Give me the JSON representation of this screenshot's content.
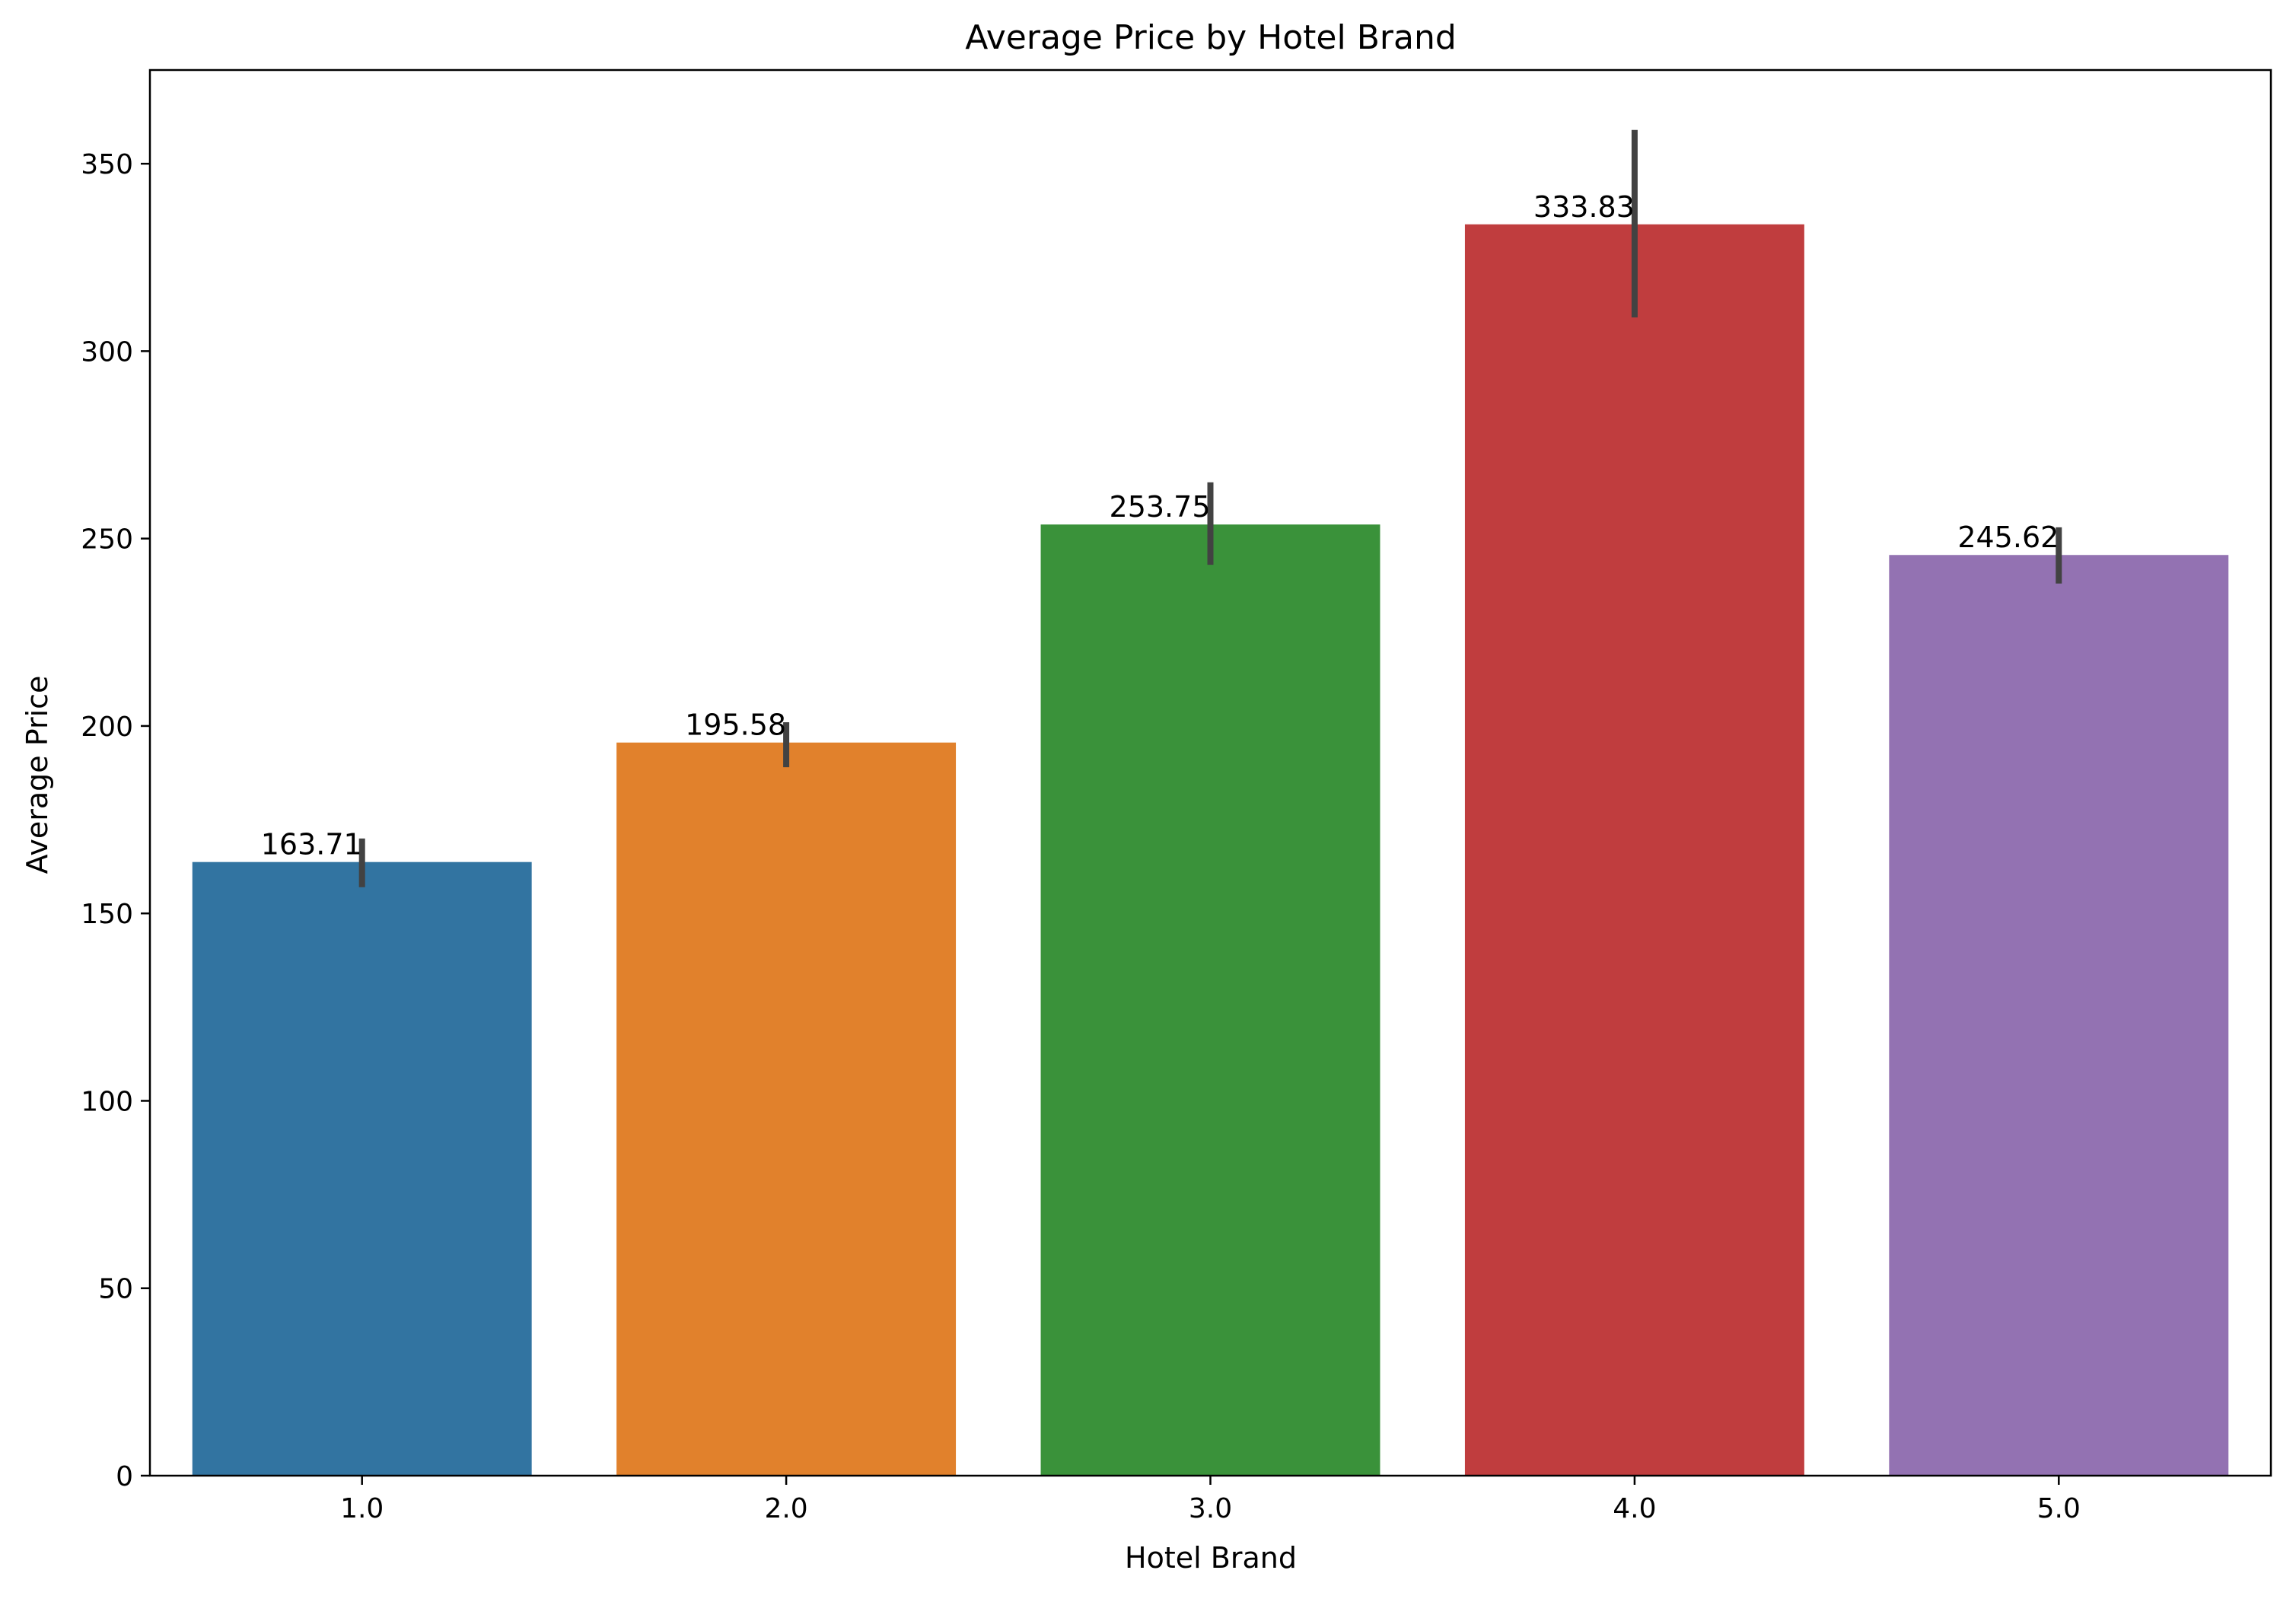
{
  "chart_data": {
    "type": "bar",
    "title": "Average Price by Hotel Brand",
    "xlabel": "Hotel Brand",
    "ylabel": "Average Price",
    "categories": [
      "1.0",
      "2.0",
      "3.0",
      "4.0",
      "5.0"
    ],
    "values": [
      163.71,
      195.58,
      253.75,
      333.83,
      245.62
    ],
    "value_labels": [
      "163.71",
      "195.58",
      "253.75",
      "333.83",
      "245.62"
    ],
    "error_bars": [
      {
        "low": 157,
        "high": 170
      },
      {
        "low": 189,
        "high": 201
      },
      {
        "low": 243,
        "high": 265
      },
      {
        "low": 309,
        "high": 359
      },
      {
        "low": 238,
        "high": 253
      }
    ],
    "ylim": [
      0,
      375
    ],
    "yticks": [
      0,
      50,
      100,
      150,
      200,
      250,
      300,
      350
    ],
    "grid": false,
    "legend": "none",
    "colors": [
      "#3274a1",
      "#e1812c",
      "#3a923a",
      "#c03d3e",
      "#9372b2"
    ],
    "error_bar_color": "#424242"
  }
}
